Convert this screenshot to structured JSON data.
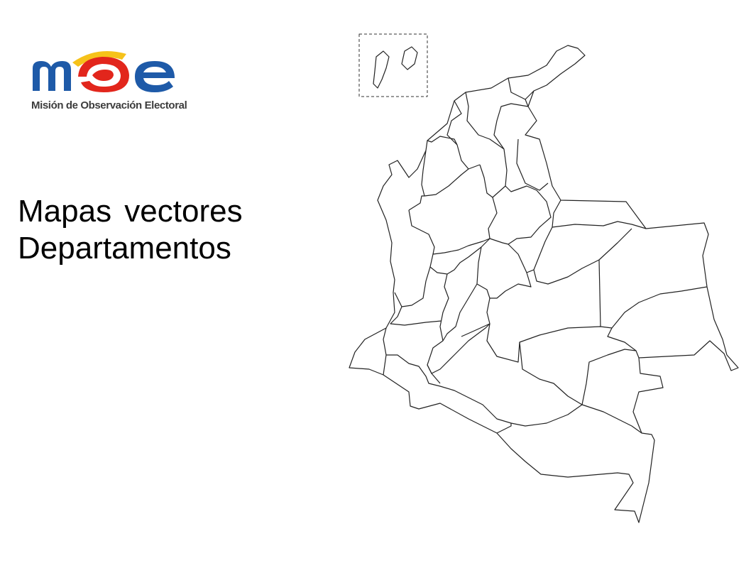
{
  "logo": {
    "text": "moe",
    "subtitle": "Misión de Observación Electoral",
    "colors": {
      "blue": "#1e5aa8",
      "red": "#e2261c",
      "yellow": "#f6c21a"
    }
  },
  "title": {
    "line1": "Mapas vectores",
    "line2": "Departamentos"
  },
  "map": {
    "stroke": "#222222",
    "fill": "#ffffff",
    "inset_border_style": "dashed"
  }
}
